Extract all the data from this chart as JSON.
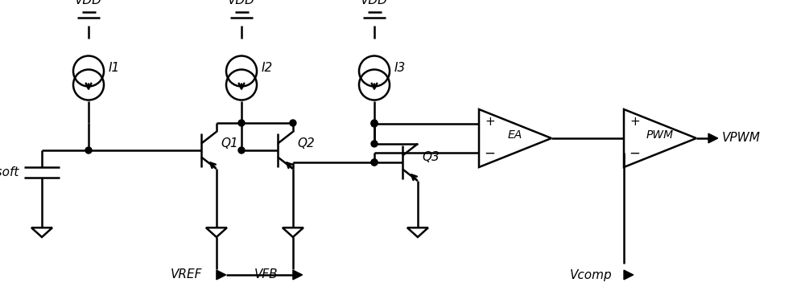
{
  "bg_color": "#ffffff",
  "line_color": "#000000",
  "lw": 1.8,
  "fs": 11,
  "fig_w": 10.0,
  "fig_h": 3.77,
  "dpi": 100,
  "xlim": [
    0,
    10
  ],
  "ylim": [
    0,
    3.77
  ]
}
